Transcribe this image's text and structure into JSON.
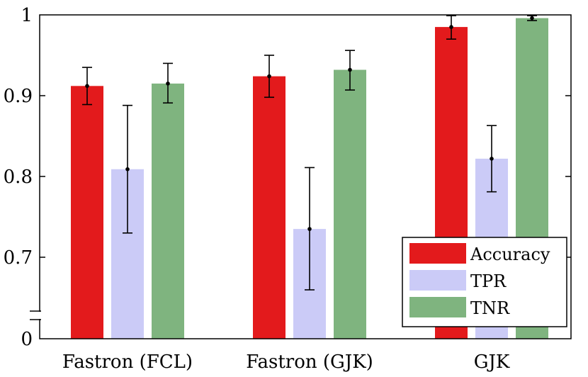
{
  "chart_data": {
    "type": "bar",
    "title": "",
    "xlabel": "",
    "ylabel": "",
    "ylim": [
      0.6,
      1.0
    ],
    "axis_break": true,
    "grid": false,
    "legend_position": "bottom-right",
    "categories": [
      "Fastron (FCL)",
      "Fastron (GJK)",
      "GJK"
    ],
    "y_ticks": [
      {
        "value": 1.0,
        "label": "1"
      },
      {
        "value": 0.9,
        "label": "0.9"
      },
      {
        "value": 0.8,
        "label": "0.8"
      },
      {
        "value": 0.7,
        "label": "0.7"
      },
      {
        "value": 0.6,
        "label": "0"
      }
    ],
    "series": [
      {
        "name": "Accuracy",
        "color": "#e31a1c",
        "values": [
          0.912,
          0.924,
          0.985
        ],
        "err_low": [
          0.889,
          0.898,
          0.97
        ],
        "err_high": [
          0.935,
          0.95,
          0.999
        ]
      },
      {
        "name": "TPR",
        "color": "#cbcbf7",
        "values": [
          0.809,
          0.735,
          0.822
        ],
        "err_low": [
          0.73,
          0.66,
          0.781
        ],
        "err_high": [
          0.888,
          0.811,
          0.863
        ]
      },
      {
        "name": "TNR",
        "color": "#7fb47f",
        "values": [
          0.915,
          0.932,
          0.996
        ],
        "err_low": [
          0.891,
          0.907,
          0.993
        ],
        "err_high": [
          0.94,
          0.956,
          0.999
        ]
      }
    ]
  }
}
